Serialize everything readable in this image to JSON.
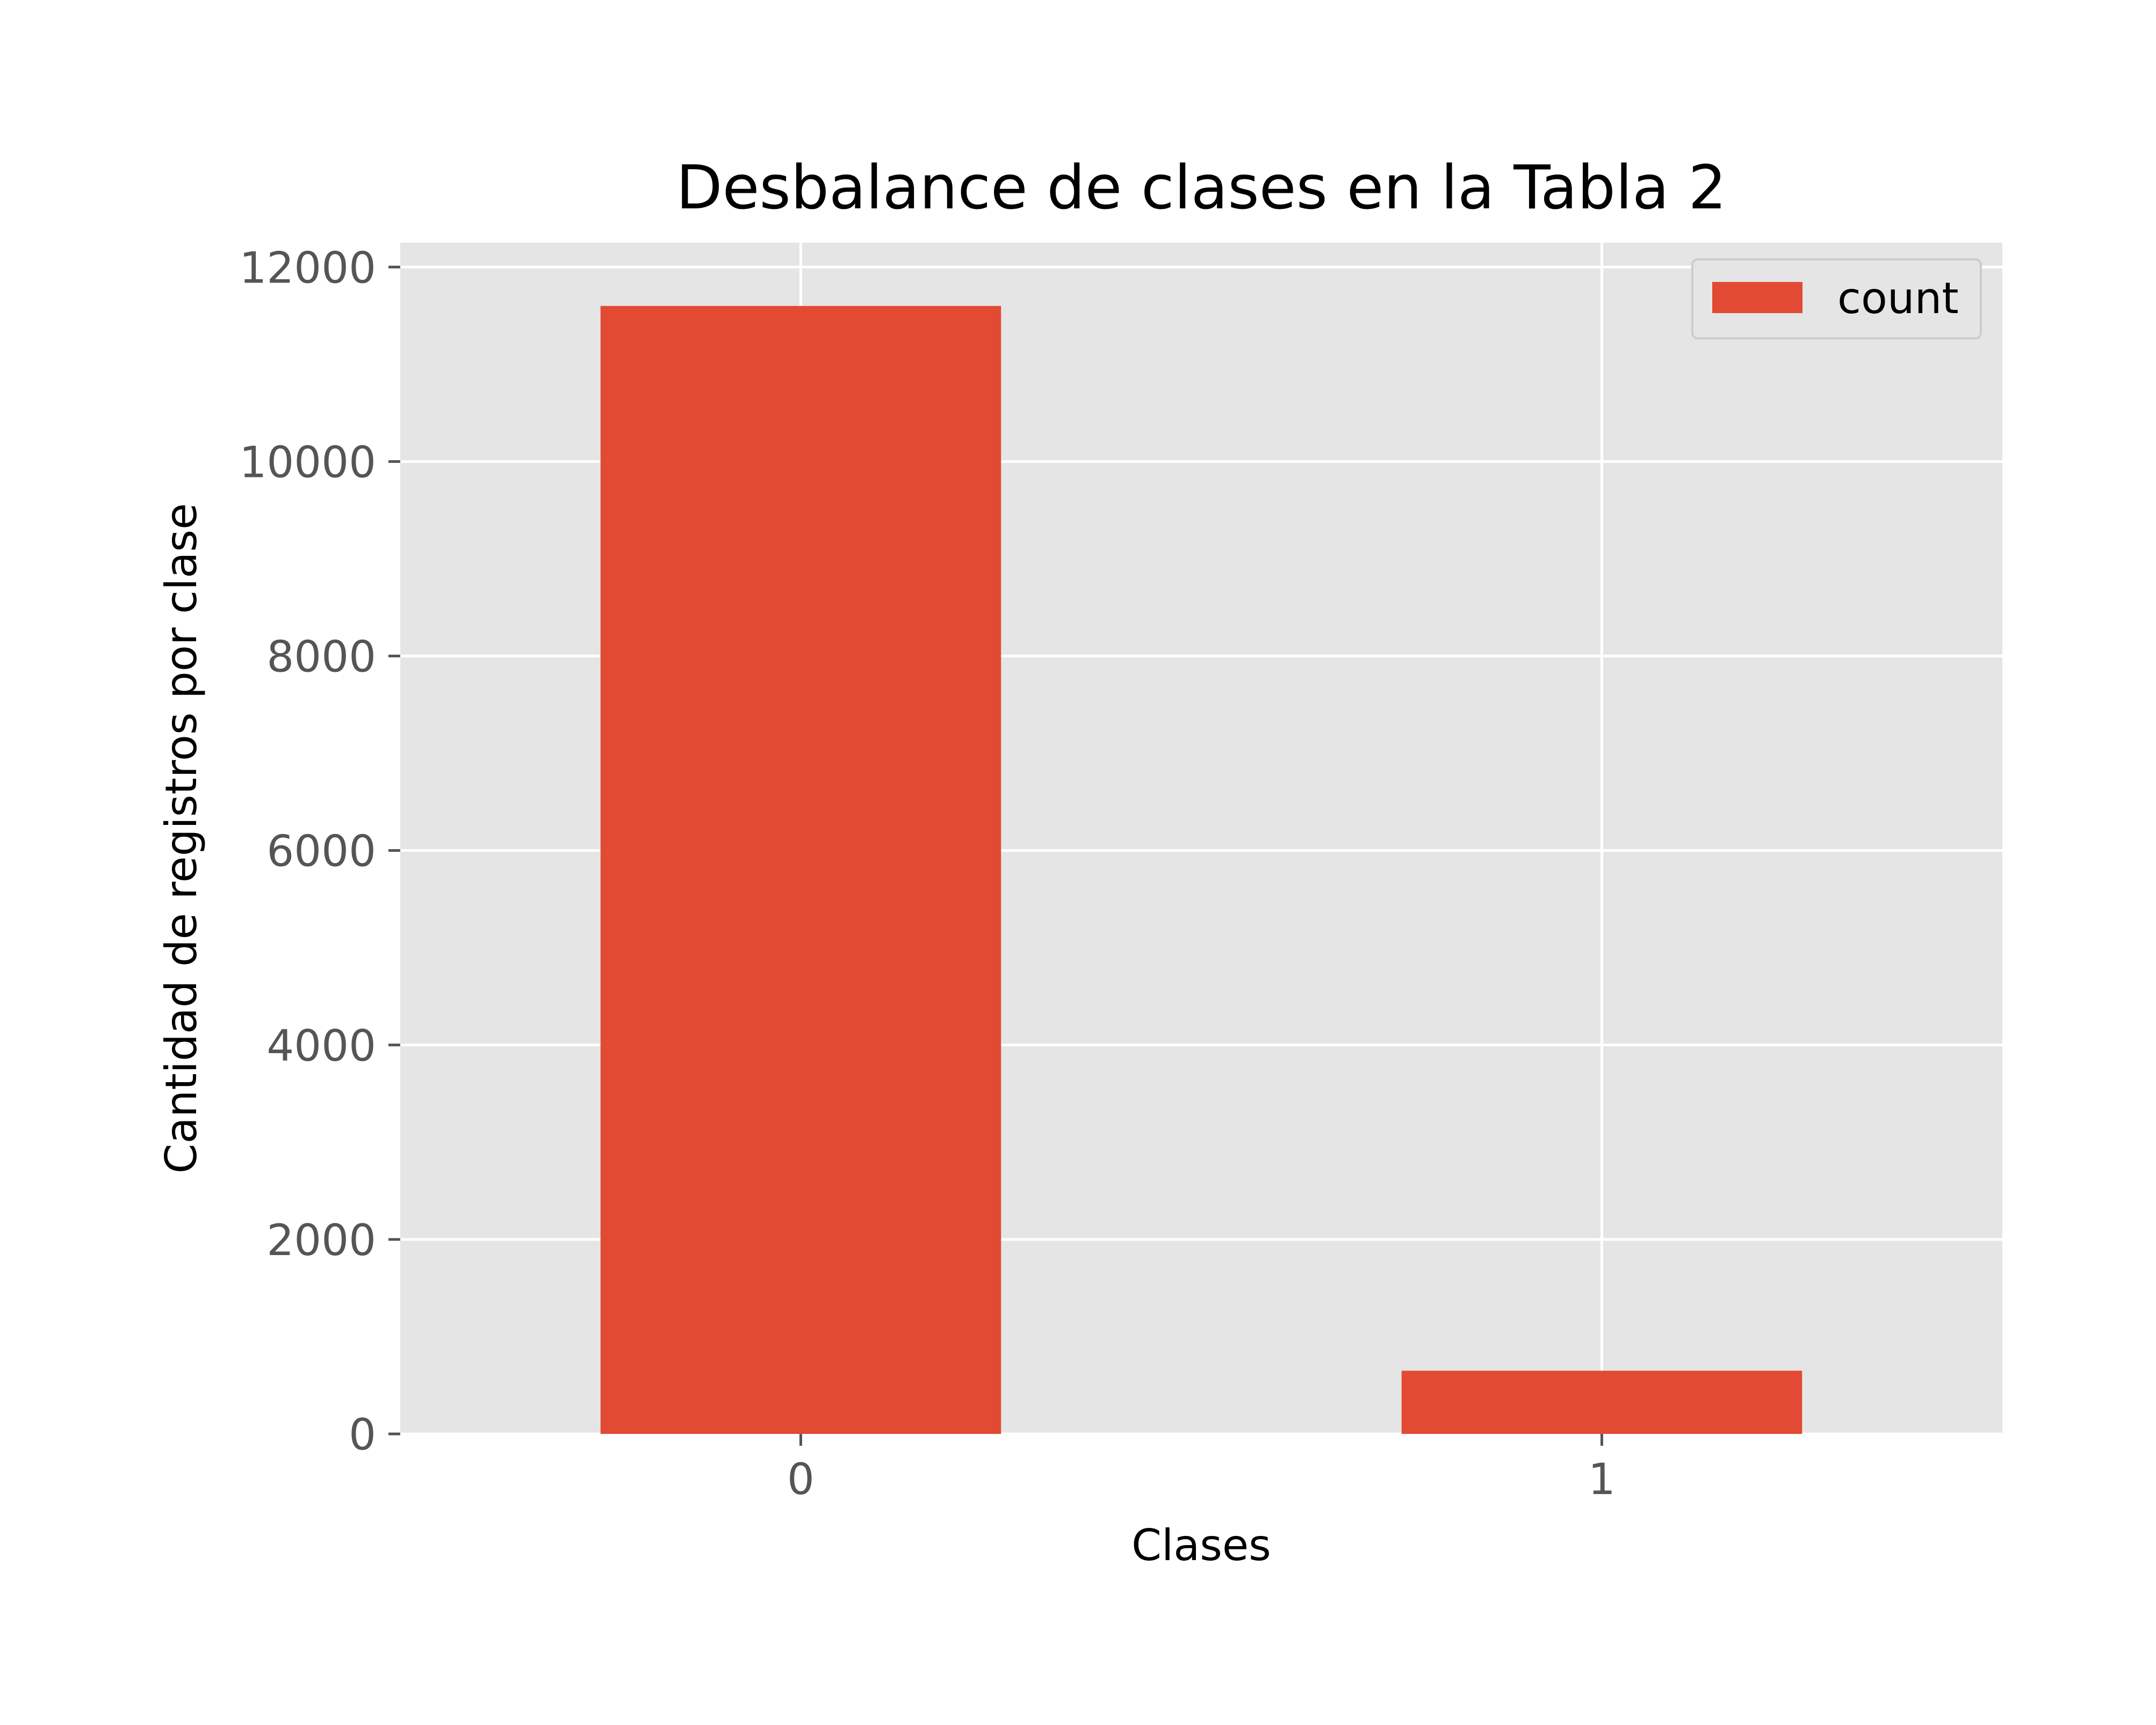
{
  "chart_data": {
    "type": "bar",
    "title": "Desbalance de clases en la Tabla 2",
    "xlabel": "Clases",
    "ylabel": "Cantidad de registros por clase",
    "categories": [
      "0",
      "1"
    ],
    "series": [
      {
        "name": "count",
        "values": [
          11600,
          650
        ],
        "color": "#E24A33"
      }
    ],
    "ylim": [
      0,
      12250
    ],
    "yticks": [
      0,
      2000,
      4000,
      6000,
      8000,
      10000,
      12000
    ],
    "ytick_labels": [
      "0",
      "2000",
      "4000",
      "6000",
      "8000",
      "10000",
      "12000"
    ],
    "grid": true,
    "legend_position": "top-right",
    "background_color": "#E5E5E5",
    "grid_color": "#FFFFFF"
  }
}
